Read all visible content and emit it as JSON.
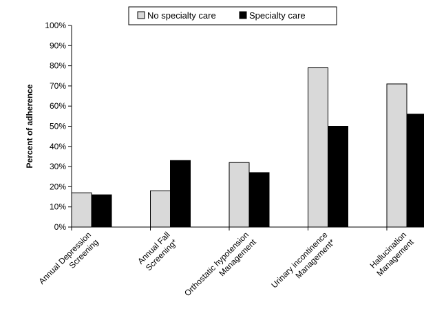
{
  "chart_data": {
    "type": "bar",
    "ylabel": "Percent of adherence",
    "ylim": [
      0,
      100
    ],
    "ytick_step": 10,
    "ytick_suffix": "%",
    "legend_position": "top-center",
    "grid": false,
    "categories": [
      [
        "Annual Depression",
        "Screening"
      ],
      [
        "Annual Fall",
        "Screening*"
      ],
      [
        "Orthostatic hypotension",
        "Management"
      ],
      [
        "Urinary incontinence",
        "Management*"
      ],
      [
        "Hallucination",
        "Management"
      ]
    ],
    "series": [
      {
        "name": "No specialty care",
        "color": "#d9d9d9",
        "values": [
          17,
          18,
          32,
          79,
          71
        ]
      },
      {
        "name": "Specialty care",
        "color": "#000000",
        "values": [
          16,
          33,
          27,
          50,
          56
        ]
      }
    ]
  }
}
